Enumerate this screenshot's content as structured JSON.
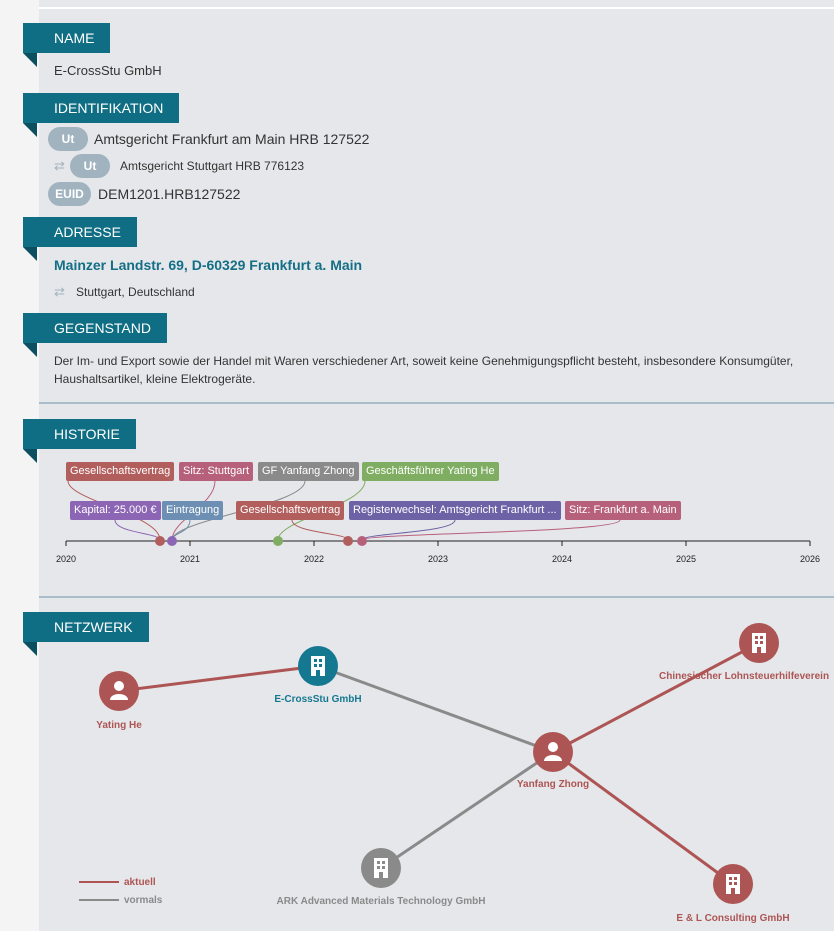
{
  "sections": {
    "name": "NAME",
    "identifikation": "IDENTIFIKATION",
    "adresse": "ADRESSE",
    "gegenstand": "GEGENSTAND",
    "historie": "HISTORIE",
    "netzwerk": "NETZWERK"
  },
  "company_name": "E-CrossStu GmbH",
  "identifiers": [
    {
      "badge": "Ut",
      "text": "Amtsgericht Frankfurt am Main HRB 127522"
    },
    {
      "badge": "Ut",
      "text": "Amtsgericht Stuttgart HRB 776123"
    },
    {
      "badge": "EUID",
      "text": "DEM1201.HRB127522"
    }
  ],
  "address": {
    "current": "Mainzer Landstr. 69, D-60329 Frankfurt a. Main",
    "previous": "Stuttgart, Deutschland"
  },
  "purpose": "Der Im- und Export sowie der Handel mit Waren verschiedener Art, soweit keine Genehmigungspflicht besteht, insbesondere Konsumgüter, Haushaltsartikel, kleine Elektrogeräte.",
  "timeline": {
    "years": [
      "2020",
      "2021",
      "2022",
      "2023",
      "2024",
      "2025",
      "2026"
    ],
    "events_row1": [
      {
        "label": "Gesellschaftsvertrag",
        "color": "#b25e5c"
      },
      {
        "label": "Sitz: Stuttgart",
        "color": "#b7607c"
      },
      {
        "label": "GF Yanfang Zhong",
        "color": "#8a8a8a"
      },
      {
        "label": "Geschäftsführer Yating He",
        "color": "#7fae63"
      }
    ],
    "events_row2": [
      {
        "label": "Kapital: 25.000 €",
        "color": "#8c65b4"
      },
      {
        "label": "Eintragung",
        "color": "#6c8fb3"
      },
      {
        "label": "Gesellschaftsvertrag",
        "color": "#b25e5c"
      },
      {
        "label": "Registerwechsel: Amtsgericht Frankfurt ...",
        "color": "#6e62a6"
      },
      {
        "label": "Sitz: Frankfurt a. Main",
        "color": "#b7607c"
      }
    ]
  },
  "network": {
    "nodes": [
      {
        "label": "Yating He",
        "kind": "person",
        "color": "#ad5554"
      },
      {
        "label": "E-CrossStu GmbH",
        "kind": "company",
        "color": "#157891"
      },
      {
        "label": "Yanfang Zhong",
        "kind": "person",
        "color": "#ad5554"
      },
      {
        "label": "Chinesischer Lohnsteuerhilfeverein",
        "kind": "company",
        "color": "#ad5554"
      },
      {
        "label": "ARK Advanced Materials Technology GmbH",
        "kind": "company",
        "color": "#8a8a8a"
      },
      {
        "label": "E & L Consulting GmbH",
        "kind": "company",
        "color": "#ad5554"
      }
    ],
    "legend": [
      {
        "label": "aktuell",
        "color": "#ad5554"
      },
      {
        "label": "vormals",
        "color": "#8a8a8a"
      }
    ]
  }
}
